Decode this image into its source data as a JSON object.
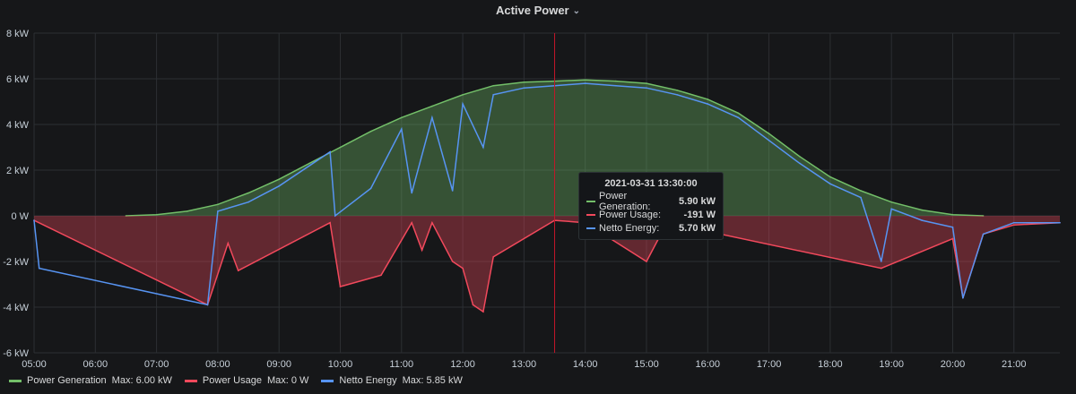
{
  "panel": {
    "title": "Active Power",
    "chevron": "chevron-down-icon"
  },
  "colors": {
    "generation": "#73bf69",
    "usage": "#f2495c",
    "netto": "#5794f2",
    "cursor": "#c4162a",
    "grid": "#2c2f33"
  },
  "tooltip": {
    "time": "2021-03-31 13:30:00",
    "rows": [
      {
        "name": "Power Generation:",
        "value": "5.90 kW"
      },
      {
        "name": "Power Usage:",
        "value": "-191 W"
      },
      {
        "name": "Netto Energy:",
        "value": "5.70 kW"
      }
    ]
  },
  "legend": [
    {
      "name": "Power Generation",
      "stat": "Max: 6.00 kW"
    },
    {
      "name": "Power Usage",
      "stat": "Max: 0 W"
    },
    {
      "name": "Netto Energy",
      "stat": "Max: 5.85 kW"
    }
  ],
  "chart_data": {
    "type": "area",
    "title": "Active Power",
    "y_unit": "kW",
    "ylim": [
      -6,
      8
    ],
    "y_ticks": [
      "8 kW",
      "6 kW",
      "4 kW",
      "2 kW",
      "0 W",
      "-2 kW",
      "-4 kW",
      "-6 kW"
    ],
    "x_ticks": [
      "05:00",
      "06:00",
      "07:00",
      "08:00",
      "09:00",
      "10:00",
      "11:00",
      "12:00",
      "13:00",
      "14:00",
      "15:00",
      "16:00",
      "17:00",
      "18:00",
      "19:00",
      "20:00",
      "21:00"
    ],
    "xlim_hours": [
      5.0,
      21.75
    ],
    "cursor_time": "13:30",
    "grid": true,
    "legend_position": "bottom",
    "series": [
      {
        "name": "Power Generation",
        "x": [
          "06:30",
          "07:00",
          "07:30",
          "08:00",
          "08:30",
          "09:00",
          "09:30",
          "10:00",
          "10:30",
          "11:00",
          "11:30",
          "12:00",
          "12:30",
          "13:00",
          "13:30",
          "14:00",
          "14:30",
          "15:00",
          "15:30",
          "16:00",
          "16:30",
          "17:00",
          "17:30",
          "18:00",
          "18:30",
          "19:00",
          "19:30",
          "20:00",
          "20:30"
        ],
        "values": [
          0.0,
          0.05,
          0.2,
          0.5,
          1.0,
          1.6,
          2.3,
          3.0,
          3.7,
          4.3,
          4.8,
          5.3,
          5.7,
          5.85,
          5.9,
          5.95,
          5.9,
          5.8,
          5.5,
          5.1,
          4.5,
          3.6,
          2.6,
          1.7,
          1.1,
          0.6,
          0.25,
          0.05,
          0.0
        ]
      },
      {
        "name": "Power Usage",
        "x": [
          "05:00",
          "07:50",
          "08:10",
          "08:20",
          "09:50",
          "10:00",
          "10:40",
          "11:10",
          "11:20",
          "11:30",
          "11:50",
          "12:00",
          "12:10",
          "12:20",
          "12:30",
          "13:30",
          "14:00",
          "15:00",
          "15:20",
          "18:50",
          "20:00",
          "20:10",
          "20:30",
          "21:00",
          "21:45"
        ],
        "values": [
          -0.2,
          -3.9,
          -1.2,
          -2.4,
          -0.3,
          -3.1,
          -2.6,
          -0.3,
          -1.5,
          -0.3,
          -2.0,
          -2.3,
          -3.9,
          -4.2,
          -1.8,
          -0.2,
          -0.3,
          -2.0,
          -0.3,
          -2.3,
          -1.0,
          -3.6,
          -0.8,
          -0.4,
          -0.3
        ]
      },
      {
        "name": "Netto Energy",
        "x": [
          "05:00",
          "05:05",
          "07:50",
          "08:00",
          "08:30",
          "09:00",
          "09:50",
          "09:55",
          "10:30",
          "11:00",
          "11:10",
          "11:30",
          "11:50",
          "12:00",
          "12:20",
          "12:30",
          "13:00",
          "13:30",
          "14:00",
          "14:30",
          "15:00",
          "15:30",
          "16:00",
          "16:30",
          "17:00",
          "17:30",
          "18:00",
          "18:30",
          "18:50",
          "19:00",
          "19:30",
          "20:00",
          "20:10",
          "20:30",
          "21:00",
          "21:45"
        ],
        "values": [
          -0.2,
          -2.3,
          -3.9,
          0.2,
          0.6,
          1.3,
          2.8,
          0.0,
          1.2,
          3.8,
          1.0,
          4.3,
          1.1,
          4.9,
          3.0,
          5.3,
          5.6,
          5.7,
          5.8,
          5.7,
          5.6,
          5.3,
          4.9,
          4.3,
          3.3,
          2.3,
          1.4,
          0.8,
          -2.0,
          0.3,
          -0.2,
          -0.5,
          -3.6,
          -0.8,
          -0.3,
          -0.3
        ]
      }
    ]
  }
}
